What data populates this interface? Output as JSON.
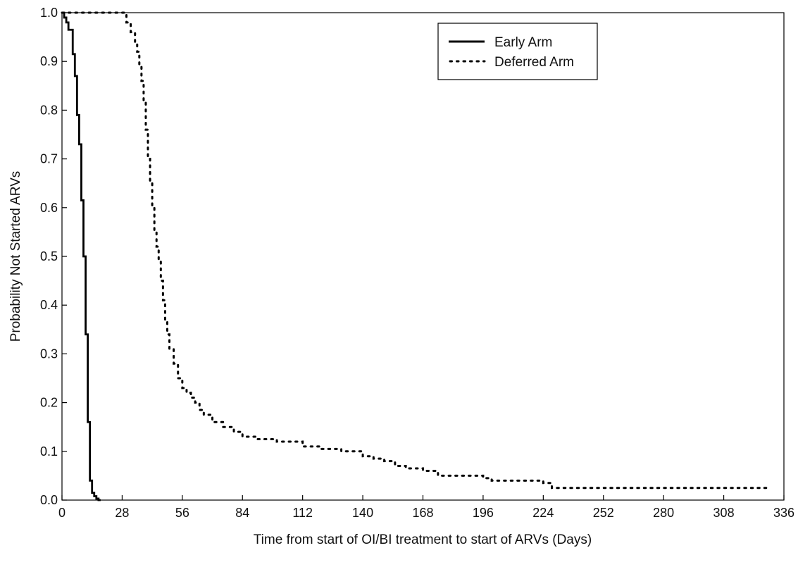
{
  "chart_data": {
    "type": "line",
    "xlabel": "Time from start of OI/BI treatment to start of ARVs (Days)",
    "ylabel": "Probability Not Started ARVs",
    "xlim": [
      0,
      336
    ],
    "ylim": [
      0,
      1.0
    ],
    "x_ticks": [
      0,
      28,
      56,
      84,
      112,
      140,
      168,
      196,
      224,
      252,
      280,
      308,
      336
    ],
    "y_ticks": [
      0.0,
      0.1,
      0.2,
      0.3,
      0.4,
      0.5,
      0.6,
      0.7,
      0.8,
      0.9,
      1.0
    ],
    "x_tick_labels": [
      "0",
      "28",
      "56",
      "84",
      "112",
      "140",
      "168",
      "196",
      "224",
      "252",
      "280",
      "308",
      "336"
    ],
    "y_tick_labels": [
      "0.0",
      "0.1",
      "0.2",
      "0.3",
      "0.4",
      "0.5",
      "0.6",
      "0.7",
      "0.8",
      "0.9",
      "1.0"
    ],
    "grid": false,
    "legend_position": "top-right",
    "series": [
      {
        "name": "Early Arm",
        "style": "solid",
        "color": "#000000",
        "x": [
          0,
          1,
          2,
          3,
          4,
          5,
          6,
          7,
          8,
          9,
          10,
          11,
          12,
          13,
          14,
          15,
          16,
          17,
          18
        ],
        "y": [
          1.0,
          0.99,
          0.98,
          0.965,
          0.965,
          0.915,
          0.87,
          0.79,
          0.73,
          0.615,
          0.5,
          0.34,
          0.16,
          0.04,
          0.015,
          0.008,
          0.003,
          0.0,
          0.0
        ]
      },
      {
        "name": "Deferred Arm",
        "style": "dotted",
        "color": "#000000",
        "x": [
          0,
          28,
          30,
          32,
          34,
          35,
          36,
          37,
          38,
          39,
          40,
          41,
          42,
          43,
          44,
          45,
          46,
          47,
          48,
          49,
          50,
          52,
          54,
          56,
          58,
          60,
          62,
          64,
          66,
          70,
          75,
          80,
          84,
          90,
          100,
          112,
          120,
          130,
          140,
          145,
          150,
          155,
          160,
          168,
          175,
          180,
          196,
          200,
          210,
          224,
          228,
          240,
          260,
          280,
          300,
          320,
          329
        ],
        "y": [
          1.0,
          1.0,
          0.98,
          0.96,
          0.94,
          0.92,
          0.89,
          0.86,
          0.82,
          0.76,
          0.7,
          0.65,
          0.6,
          0.55,
          0.52,
          0.49,
          0.45,
          0.41,
          0.37,
          0.34,
          0.31,
          0.28,
          0.25,
          0.23,
          0.22,
          0.21,
          0.2,
          0.185,
          0.175,
          0.16,
          0.15,
          0.14,
          0.13,
          0.125,
          0.12,
          0.11,
          0.105,
          0.1,
          0.09,
          0.085,
          0.08,
          0.07,
          0.065,
          0.06,
          0.05,
          0.05,
          0.045,
          0.04,
          0.04,
          0.035,
          0.025,
          0.025,
          0.025,
          0.025,
          0.025,
          0.025,
          0.025
        ]
      }
    ]
  }
}
